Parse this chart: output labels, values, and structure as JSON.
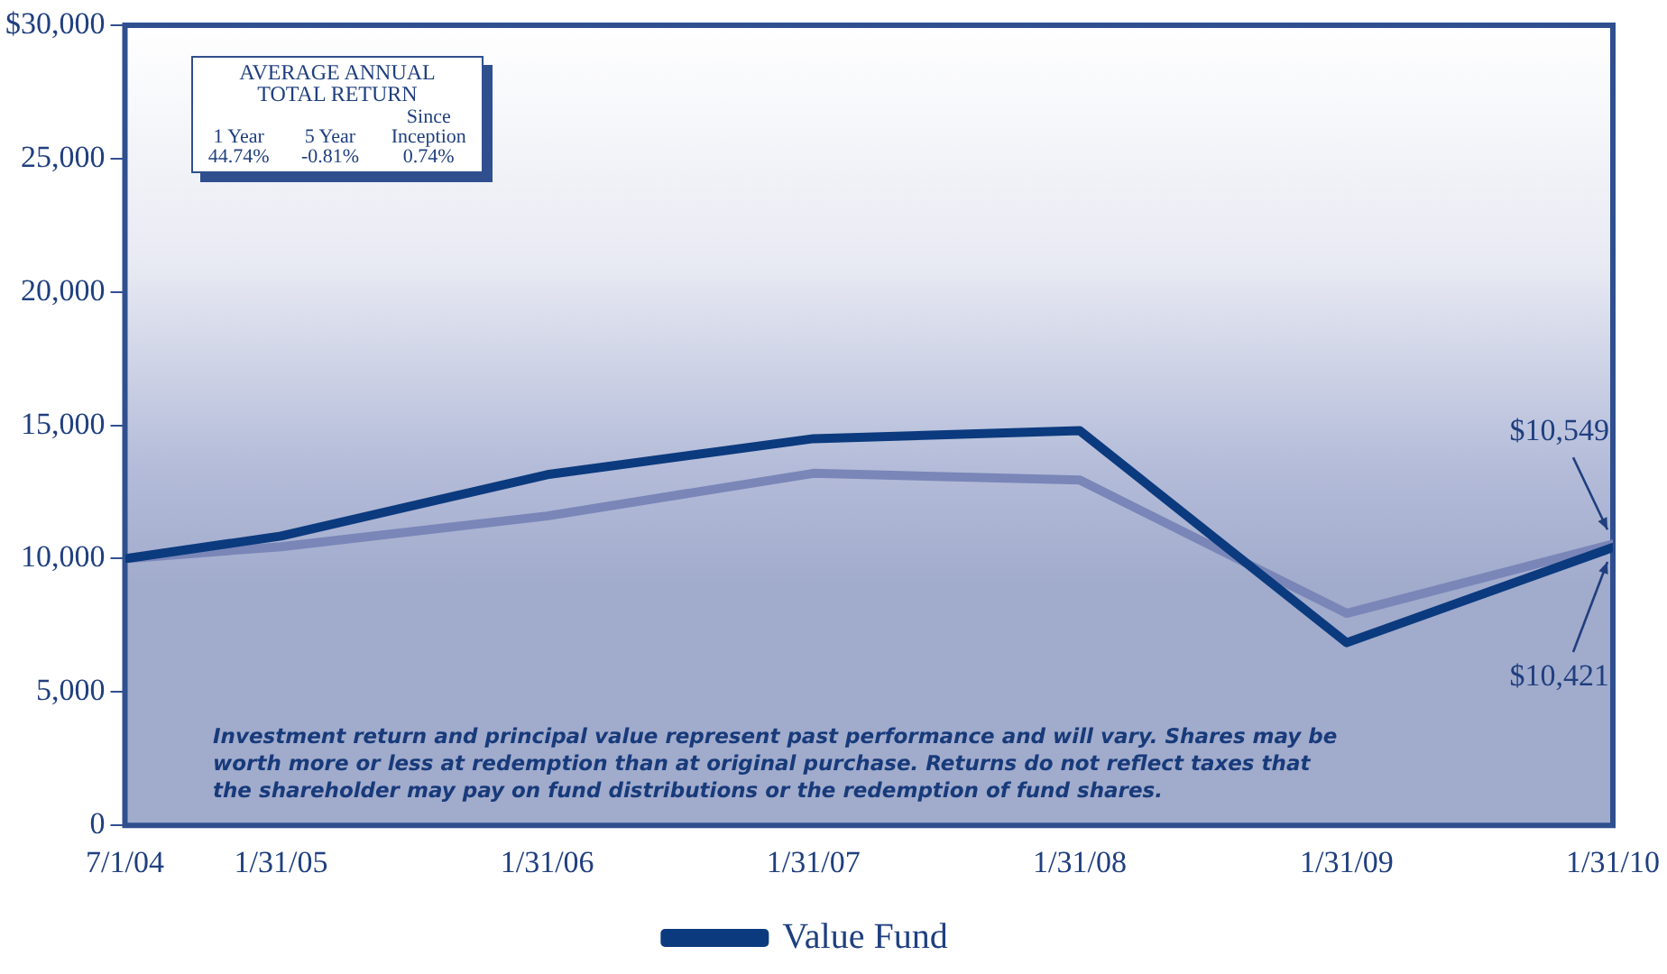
{
  "chart_data": {
    "type": "line",
    "x": [
      "2004-07-01",
      "2005-01-31",
      "2006-01-31",
      "2007-01-31",
      "2008-01-31",
      "2009-01-31",
      "2010-01-31"
    ],
    "series": [
      {
        "name": "Value Fund",
        "color": "#0b3a7e",
        "values": [
          10000,
          10850,
          13150,
          14500,
          14800,
          6850,
          10421
        ]
      },
      {
        "color": "#7a86b8",
        "values": [
          10000,
          10450,
          11600,
          13200,
          12950,
          7950,
          10549
        ]
      }
    ],
    "xlim": [
      "2004-07-01",
      "2010-01-31"
    ],
    "xticks": [
      {
        "value": "2004-07-01",
        "label": "7/1/04"
      },
      {
        "value": "2005-01-31",
        "label": "1/31/05"
      },
      {
        "value": "2006-01-31",
        "label": "1/31/06"
      },
      {
        "value": "2007-01-31",
        "label": "1/31/07"
      },
      {
        "value": "2008-01-31",
        "label": "1/31/08"
      },
      {
        "value": "2009-01-31",
        "label": "1/31/09"
      },
      {
        "value": "2010-01-31",
        "label": "1/31/10"
      }
    ],
    "ylim": [
      0,
      30000
    ],
    "yticks": [
      {
        "value": 0,
        "label": "0"
      },
      {
        "value": 5000,
        "label": "5,000"
      },
      {
        "value": 10000,
        "label": "10,000"
      },
      {
        "value": 15000,
        "label": "15,000"
      },
      {
        "value": 20000,
        "label": "20,000"
      },
      {
        "value": 25000,
        "label": "25,000"
      },
      {
        "value": 30000,
        "label": "$30,000"
      }
    ],
    "legend": "bottom",
    "marker": "none",
    "line_style": "solid",
    "grid": false,
    "annotations": [
      "AVERAGE ANNUAL TOTAL RETURN",
      "1 Year",
      "44.74%",
      "5 Year",
      "-0.81%",
      "Since Inception",
      "0.74%",
      "Investment return and principal value represent past performance and will vary.  Shares may be worth more or less at redemption than at original purchase. Returns do not reflect taxes that the shareholder may pay on fund distributions or the redemption of fund shares.",
      {
        "text": "$10,549",
        "x": "2010-01-31",
        "y": 10549
      },
      {
        "text": "$10,421",
        "x": "2010-01-31",
        "y": 10421
      }
    ]
  }
}
